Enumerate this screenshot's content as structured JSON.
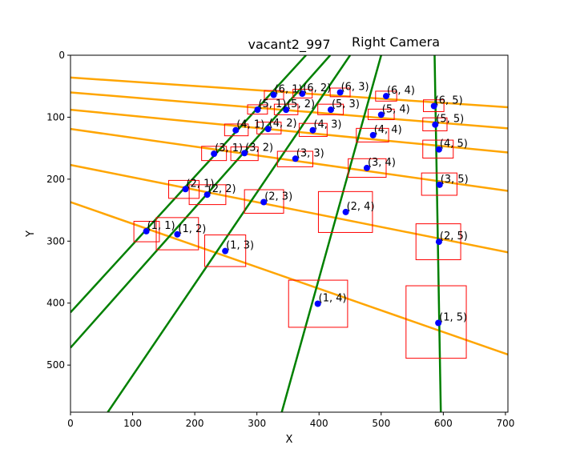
{
  "chart_data": {
    "type": "scatter",
    "title": "vacant2_997",
    "subtitle": "Right Camera",
    "subtitle_color": "#ff0000",
    "xlabel": "X",
    "ylabel": "Y",
    "xlim": [
      0,
      704
    ],
    "ylim": [
      576,
      0
    ],
    "y_inverted": true,
    "grid": false,
    "xticks": [
      0,
      100,
      200,
      300,
      400,
      500,
      600,
      700
    ],
    "yticks": [
      0,
      100,
      200,
      300,
      400,
      500
    ],
    "colors": {
      "points": "#0000ff",
      "boxes": "#ff0000",
      "row_lines": "#ffa500",
      "col_lines": "#008000"
    },
    "points": [
      {
        "label": "(1, 1)",
        "x": 122,
        "y": 284
      },
      {
        "label": "(1, 2)",
        "x": 172,
        "y": 289
      },
      {
        "label": "(1, 3)",
        "x": 249,
        "y": 316
      },
      {
        "label": "(1, 4)",
        "x": 398,
        "y": 401
      },
      {
        "label": "(1, 5)",
        "x": 592,
        "y": 432
      },
      {
        "label": "(2, 1)",
        "x": 185,
        "y": 216
      },
      {
        "label": "(2, 2)",
        "x": 220,
        "y": 225
      },
      {
        "label": "(2, 3)",
        "x": 311,
        "y": 237
      },
      {
        "label": "(2, 4)",
        "x": 443,
        "y": 253
      },
      {
        "label": "(2, 5)",
        "x": 593,
        "y": 301
      },
      {
        "label": "(3, 1)",
        "x": 231,
        "y": 159
      },
      {
        "label": "(3, 2)",
        "x": 280,
        "y": 158
      },
      {
        "label": "(3, 3)",
        "x": 362,
        "y": 167
      },
      {
        "label": "(3, 4)",
        "x": 477,
        "y": 182
      },
      {
        "label": "(3, 5)",
        "x": 594,
        "y": 209
      },
      {
        "label": "(4, 1)",
        "x": 266,
        "y": 121
      },
      {
        "label": "(4, 2)",
        "x": 318,
        "y": 119
      },
      {
        "label": "(4, 3)",
        "x": 390,
        "y": 121
      },
      {
        "label": "(4, 4)",
        "x": 487,
        "y": 129
      },
      {
        "label": "(4, 5)",
        "x": 593,
        "y": 152
      },
      {
        "label": "(5, 1)",
        "x": 301,
        "y": 88
      },
      {
        "label": "(5, 2)",
        "x": 347,
        "y": 88
      },
      {
        "label": "(5, 3)",
        "x": 419,
        "y": 88
      },
      {
        "label": "(5, 4)",
        "x": 500,
        "y": 96
      },
      {
        "label": "(5, 5)",
        "x": 587,
        "y": 112
      },
      {
        "label": "(6, 1)",
        "x": 327,
        "y": 64
      },
      {
        "label": "(6, 2)",
        "x": 373,
        "y": 62
      },
      {
        "label": "(6, 3)",
        "x": 434,
        "y": 60
      },
      {
        "label": "(6, 4)",
        "x": 508,
        "y": 66
      },
      {
        "label": "(6, 5)",
        "x": 585,
        "y": 82
      }
    ],
    "boxes": [
      {
        "x0": 102,
        "y0": 268,
        "x1": 143,
        "y1": 301
      },
      {
        "x0": 138,
        "y0": 262,
        "x1": 206,
        "y1": 314
      },
      {
        "x0": 216,
        "y0": 290,
        "x1": 282,
        "y1": 341
      },
      {
        "x0": 351,
        "y0": 363,
        "x1": 446,
        "y1": 439
      },
      {
        "x0": 540,
        "y0": 372,
        "x1": 637,
        "y1": 489
      },
      {
        "x0": 158,
        "y0": 202,
        "x1": 207,
        "y1": 231
      },
      {
        "x0": 191,
        "y0": 209,
        "x1": 250,
        "y1": 241
      },
      {
        "x0": 280,
        "y0": 217,
        "x1": 343,
        "y1": 255
      },
      {
        "x0": 399,
        "y0": 220,
        "x1": 486,
        "y1": 286
      },
      {
        "x0": 556,
        "y0": 272,
        "x1": 628,
        "y1": 330
      },
      {
        "x0": 211,
        "y0": 147,
        "x1": 251,
        "y1": 170
      },
      {
        "x0": 258,
        "y0": 148,
        "x1": 302,
        "y1": 170
      },
      {
        "x0": 333,
        "y0": 155,
        "x1": 390,
        "y1": 180
      },
      {
        "x0": 447,
        "y0": 167,
        "x1": 508,
        "y1": 197
      },
      {
        "x0": 565,
        "y0": 190,
        "x1": 622,
        "y1": 226
      },
      {
        "x0": 248,
        "y0": 111,
        "x1": 286,
        "y1": 130
      },
      {
        "x0": 300,
        "y0": 108,
        "x1": 339,
        "y1": 127
      },
      {
        "x0": 368,
        "y0": 110,
        "x1": 413,
        "y1": 131
      },
      {
        "x0": 460,
        "y0": 118,
        "x1": 512,
        "y1": 140
      },
      {
        "x0": 567,
        "y0": 137,
        "x1": 616,
        "y1": 166
      },
      {
        "x0": 285,
        "y0": 80,
        "x1": 317,
        "y1": 95
      },
      {
        "x0": 328,
        "y0": 79,
        "x1": 366,
        "y1": 96
      },
      {
        "x0": 398,
        "y0": 79,
        "x1": 439,
        "y1": 96
      },
      {
        "x0": 479,
        "y0": 87,
        "x1": 521,
        "y1": 104
      },
      {
        "x0": 567,
        "y0": 101,
        "x1": 606,
        "y1": 122
      },
      {
        "x0": 312,
        "y0": 57,
        "x1": 343,
        "y1": 71
      },
      {
        "x0": 358,
        "y0": 55,
        "x1": 389,
        "y1": 69
      },
      {
        "x0": 418,
        "y0": 53,
        "x1": 450,
        "y1": 67
      },
      {
        "x0": 491,
        "y0": 58,
        "x1": 525,
        "y1": 74
      },
      {
        "x0": 568,
        "y0": 72,
        "x1": 601,
        "y1": 91
      }
    ],
    "row_lines": [
      {
        "x0": 0,
        "y0": 237,
        "x1": 704,
        "y1": 483
      },
      {
        "x0": 0,
        "y0": 177,
        "x1": 704,
        "y1": 318
      },
      {
        "x0": 0,
        "y0": 119,
        "x1": 704,
        "y1": 219
      },
      {
        "x0": 0,
        "y0": 88,
        "x1": 704,
        "y1": 157
      },
      {
        "x0": 0,
        "y0": 60,
        "x1": 704,
        "y1": 118
      },
      {
        "x0": 0,
        "y0": 36,
        "x1": 704,
        "y1": 84
      }
    ],
    "col_lines": [
      {
        "x0": 0,
        "y0": 415,
        "x1": 379,
        "y1": 0
      },
      {
        "x0": 0,
        "y0": 472,
        "x1": 418,
        "y1": 0
      },
      {
        "x0": 60,
        "y0": 576,
        "x1": 450,
        "y1": 0
      },
      {
        "x0": 340,
        "y0": 576,
        "x1": 500,
        "y1": 0
      },
      {
        "x0": 596,
        "y0": 576,
        "x1": 586,
        "y1": 0
      }
    ]
  }
}
